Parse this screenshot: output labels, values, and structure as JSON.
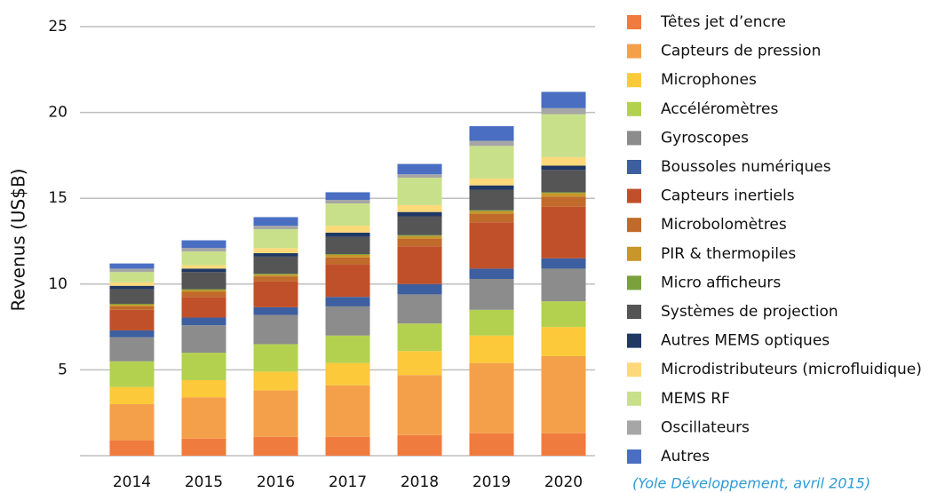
{
  "chart_data": {
    "type": "stacked_bar",
    "ylabel": "Revenus (US$B)",
    "source": "(Yole Développement, avril 2015)",
    "categories": [
      "2014",
      "2015",
      "2016",
      "2017",
      "2018",
      "2019",
      "2020"
    ],
    "ylim": [
      0,
      25
    ],
    "yticks": [
      5,
      10,
      15,
      20,
      25
    ],
    "grid": true,
    "series": [
      {
        "name": "Têtes jet d’encre",
        "color": "#f07b3f",
        "values": [
          0.9,
          1.0,
          1.1,
          1.1,
          1.2,
          1.3,
          1.3
        ]
      },
      {
        "name": "Capteurs de pression",
        "color": "#f4a04a",
        "values": [
          2.1,
          2.4,
          2.7,
          3.0,
          3.5,
          4.1,
          4.5
        ]
      },
      {
        "name": "Microphones",
        "color": "#fcc93a",
        "values": [
          1.0,
          1.0,
          1.1,
          1.3,
          1.4,
          1.6,
          1.7
        ]
      },
      {
        "name": "Accéléromètres",
        "color": "#b3d14f",
        "values": [
          1.5,
          1.6,
          1.6,
          1.6,
          1.6,
          1.5,
          1.5
        ]
      },
      {
        "name": "Gyroscopes",
        "color": "#8c8c8c",
        "values": [
          1.4,
          1.6,
          1.7,
          1.7,
          1.7,
          1.8,
          1.9
        ]
      },
      {
        "name": "Boussoles numériques",
        "color": "#3d5fa0",
        "values": [
          0.4,
          0.45,
          0.45,
          0.55,
          0.6,
          0.6,
          0.6
        ]
      },
      {
        "name": "Capteurs inertiels",
        "color": "#c0502a",
        "values": [
          1.2,
          1.2,
          1.5,
          1.9,
          2.2,
          2.7,
          3.0
        ]
      },
      {
        "name": "Microbolomètres",
        "color": "#c06a2b",
        "values": [
          0.2,
          0.3,
          0.3,
          0.4,
          0.45,
          0.5,
          0.6
        ]
      },
      {
        "name": "PIR & thermopiles",
        "color": "#c8962a",
        "values": [
          0.1,
          0.1,
          0.1,
          0.15,
          0.15,
          0.15,
          0.2
        ]
      },
      {
        "name": "Micro afficheurs",
        "color": "#7aa13b",
        "values": [
          0.05,
          0.05,
          0.05,
          0.05,
          0.05,
          0.05,
          0.05
        ]
      },
      {
        "name": "Systèmes de projection",
        "color": "#555555",
        "values": [
          0.85,
          1.0,
          1.0,
          1.0,
          1.1,
          1.2,
          1.3
        ]
      },
      {
        "name": "Autres MEMS optiques",
        "color": "#1f3864",
        "values": [
          0.2,
          0.2,
          0.2,
          0.25,
          0.25,
          0.25,
          0.25
        ]
      },
      {
        "name": "Microdistributeurs (microfluidique)",
        "color": "#fdd97a",
        "values": [
          0.2,
          0.2,
          0.3,
          0.4,
          0.4,
          0.4,
          0.5
        ]
      },
      {
        "name": "MEMS RF",
        "color": "#c9e08a",
        "values": [
          0.6,
          0.8,
          1.1,
          1.3,
          1.6,
          1.9,
          2.5
        ]
      },
      {
        "name": "Oscillateurs",
        "color": "#a6a6a6",
        "values": [
          0.2,
          0.2,
          0.2,
          0.2,
          0.2,
          0.3,
          0.35
        ]
      },
      {
        "name": "Autres",
        "color": "#4a6fc2",
        "values": [
          0.3,
          0.45,
          0.5,
          0.45,
          0.6,
          0.85,
          0.95
        ]
      }
    ]
  }
}
